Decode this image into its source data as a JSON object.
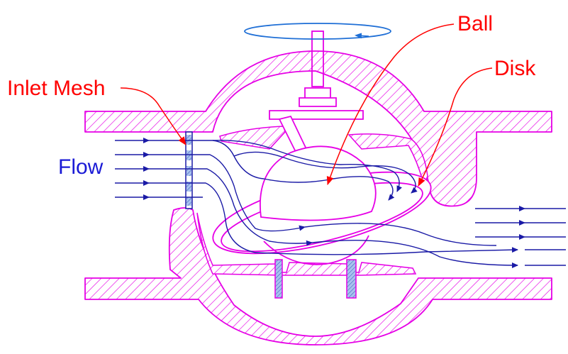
{
  "labels": {
    "ball": "Ball",
    "disk": "Disk",
    "inlet_mesh": "Inlet Mesh",
    "flow": "Flow"
  },
  "colors": {
    "body": "#e600e6",
    "hatch": "#e600e6",
    "flow": "#1a1aa6",
    "callout": "#ff0000",
    "rotation": "#1f6fd6",
    "mesh_fill": "#6a8fd8",
    "internals": "#e600e6"
  }
}
